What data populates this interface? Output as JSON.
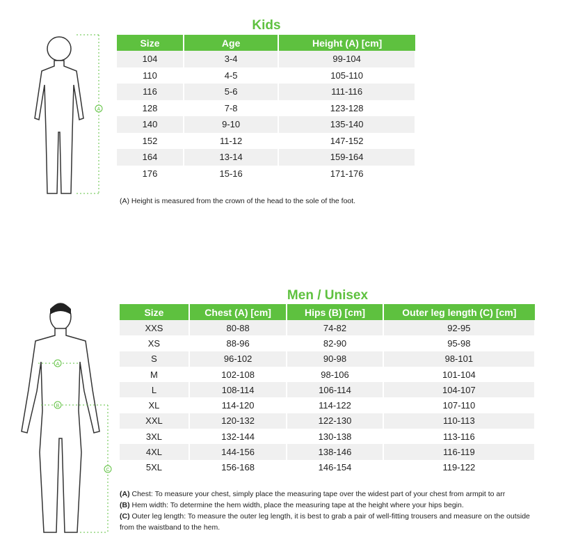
{
  "kids": {
    "title": "Kids",
    "headers": [
      "Size",
      "Age",
      "Height (A) [cm]"
    ],
    "rows": [
      [
        "104",
        "3-4",
        "99-104"
      ],
      [
        "110",
        "4-5",
        "105-110"
      ],
      [
        "116",
        "5-6",
        "111-116"
      ],
      [
        "128",
        "7-8",
        "123-128"
      ],
      [
        "140",
        "9-10",
        "135-140"
      ],
      [
        "152",
        "11-12",
        "147-152"
      ],
      [
        "164",
        "13-14",
        "159-164"
      ],
      [
        "176",
        "15-16",
        "171-176"
      ]
    ],
    "marker": "A",
    "note": "(A) Height is measured from the crown of the head to the sole of the foot."
  },
  "men": {
    "title": "Men / Unisex",
    "headers": [
      "Size",
      "Chest (A)  [cm]",
      "Hips (B) [cm]",
      "Outer leg length (C) [cm]"
    ],
    "rows": [
      [
        "XXS",
        "80-88",
        "74-82",
        "92-95"
      ],
      [
        "XS",
        "88-96",
        "82-90",
        "95-98"
      ],
      [
        "S",
        "96-102",
        "90-98",
        "98-101"
      ],
      [
        "M",
        "102-108",
        "98-106",
        "101-104"
      ],
      [
        "L",
        "108-114",
        "106-114",
        "104-107"
      ],
      [
        "XL",
        "114-120",
        "114-122",
        "107-110"
      ],
      [
        "XXL",
        "120-132",
        "122-130",
        "110-113"
      ],
      [
        "3XL",
        "132-144",
        "130-138",
        "113-116"
      ],
      [
        "4XL",
        "144-156",
        "138-146",
        "116-119"
      ],
      [
        "5XL",
        "156-168",
        "146-154",
        "119-122"
      ]
    ],
    "markers": [
      "A",
      "B",
      "C"
    ],
    "notes": [
      {
        "label": "(A)",
        "text": " Chest: To measure your chest, simply place the measuring tape over the widest part of your chest from armpit to arr"
      },
      {
        "label": "(B)",
        "text": " Hem width: To determine the hem width, place the measuring tape at the height where your hips begin."
      },
      {
        "label": "(C)",
        "text": " Outer leg length: To measure the outer leg length, it is best to grab a pair of well-fitting trousers and measure on the outside from the waistband to the hem."
      }
    ]
  },
  "colors": {
    "accent": "#5ec13f",
    "row_alt": "#f0f0f0"
  }
}
